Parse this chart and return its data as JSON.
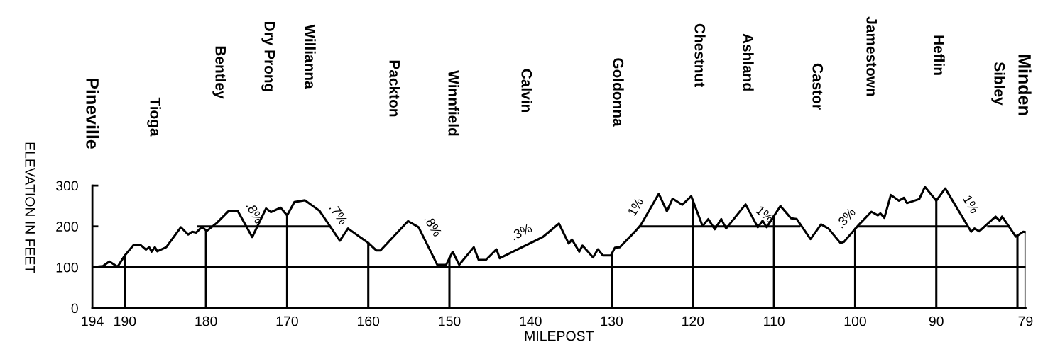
{
  "chart_data": {
    "type": "line",
    "xlabel": "MILEPOST",
    "ylabel": "ELEVATION IN FEET",
    "xlim": [
      194,
      79
    ],
    "ylim": [
      0,
      300
    ],
    "xticks": [
      194,
      190,
      180,
      170,
      160,
      150,
      140,
      130,
      120,
      110,
      100,
      90,
      79
    ],
    "yticks": [
      0,
      100,
      200,
      300
    ],
    "grid": false,
    "series": [
      {
        "color": "#000000",
        "x": [
          194,
          192.7,
          191.9,
          190.9,
          190,
          188.9,
          188.1,
          187.4,
          187.0,
          186.7,
          186.3,
          186.0,
          184.9,
          183.1,
          182.2,
          181.7,
          181.2,
          180.5,
          179.9,
          178.7,
          177.2,
          176.1,
          174.3,
          172.6,
          172.0,
          170.8,
          170.0,
          169.1,
          167.8,
          166.0,
          163.5,
          162.5,
          160.1,
          159.0,
          158.5,
          155.1,
          153.8,
          151.5,
          150.4,
          149.6,
          148.8,
          147.0,
          146.4,
          145.5,
          144.2,
          143.8,
          138.5,
          136.5,
          135.3,
          134.9,
          134.0,
          133.6,
          132.3,
          131.7,
          131.1,
          130.1,
          129.6,
          129.0,
          127.1,
          126.4,
          124.2,
          123.2,
          122.5,
          121.3,
          120.2,
          118.8,
          118.1,
          117.3,
          116.5,
          115.9,
          113.5,
          112.0,
          111.4,
          110.9,
          109.2,
          107.9,
          107.2,
          105.5,
          104.2,
          103.3,
          101.8,
          101.4,
          99.5,
          98.0,
          97.2,
          96.9,
          96.4,
          95.6,
          94.6,
          94.0,
          93.6,
          92.1,
          91.4,
          90.0,
          88.9,
          85.7,
          85.3,
          84.7,
          82.7,
          82.2,
          81.9,
          81.5,
          80.2,
          79.3,
          79.0
        ],
        "values": [
          100,
          103,
          114,
          101,
          129,
          155,
          155,
          143,
          149,
          138,
          149,
          139,
          149,
          198,
          180,
          187,
          185,
          199,
          189,
          208,
          238,
          238,
          174,
          244,
          235,
          246,
          227,
          260,
          264,
          238,
          165,
          195,
          161,
          141,
          141,
          213,
          198,
          106,
          106,
          138,
          106,
          149,
          118,
          118,
          144,
          122,
          174,
          207,
          158,
          168,
          138,
          153,
          124,
          144,
          129,
          129,
          148,
          149,
          188,
          204,
          280,
          237,
          268,
          253,
          274,
          201,
          218,
          193,
          218,
          195,
          254,
          198,
          214,
          198,
          250,
          220,
          218,
          169,
          205,
          195,
          159,
          162,
          205,
          236,
          227,
          232,
          221,
          277,
          263,
          270,
          257,
          267,
          297,
          263,
          293,
          187,
          195,
          188,
          224,
          214,
          224,
          213,
          175,
          187,
          186
        ]
      },
      {
        "type": "line",
        "color": "#000000",
        "x": [
          181,
          165
        ],
        "values": [
          200,
          200
        ]
      },
      {
        "type": "line",
        "color": "#000000",
        "x": [
          126.4,
          106.9
        ],
        "values": [
          200,
          200
        ]
      },
      {
        "type": "line",
        "color": "#000000",
        "x": [
          99.5,
          86.3
        ],
        "values": [
          200,
          200
        ]
      },
      {
        "type": "line",
        "color": "#000000",
        "x": [
          83.6,
          81.1
        ],
        "values": [
          200,
          200
        ]
      }
    ],
    "ref_lines": [
      {
        "axis": "y",
        "value": 100,
        "color": "#000000"
      },
      {
        "axis": "x",
        "value": 190,
        "color": "#000000"
      },
      {
        "axis": "x",
        "value": 180,
        "color": "#000000"
      },
      {
        "axis": "x",
        "value": 170,
        "color": "#000000"
      },
      {
        "axis": "x",
        "value": 160,
        "color": "#000000"
      },
      {
        "axis": "x",
        "value": 150,
        "color": "#000000"
      },
      {
        "axis": "x",
        "value": 130,
        "color": "#000000"
      },
      {
        "axis": "x",
        "value": 120,
        "color": "#000000"
      },
      {
        "axis": "x",
        "value": 110,
        "color": "#000000"
      },
      {
        "axis": "x",
        "value": 100,
        "color": "#000000"
      },
      {
        "axis": "x",
        "value": 90,
        "color": "#000000"
      },
      {
        "axis": "x",
        "value": 80,
        "color": "#000000"
      },
      {
        "axis": "x",
        "value": 79,
        "color": "#000000"
      }
    ],
    "annotations": [
      "Pineville",
      "Tioga",
      "Bentley",
      "Dry Prong",
      "Willianna",
      "Packton",
      "Winnfield",
      "Calvin",
      "Goldonna",
      "Chestnut",
      "Ashland",
      "Castor",
      "Jamestown",
      "Heflin",
      "Sibley",
      "Minden",
      {
        "text": ".8%",
        "x": 175.5,
        "y": 217
      },
      {
        "text": ".7%",
        "x": 165.1,
        "y": 211
      },
      {
        "text": ".8%",
        "x": 153.5,
        "y": 184
      },
      {
        "text": ".3%",
        "x": 140.4,
        "y": 156
      },
      {
        "text": "1%",
        "x": 125.6,
        "y": 231
      },
      {
        "text": "1%",
        "x": 112.2,
        "y": 204
      },
      {
        "text": ".3%",
        "x": 99.9,
        "y": 198
      },
      {
        "text": "1%",
        "x": 87.2,
        "y": 237
      }
    ]
  }
}
